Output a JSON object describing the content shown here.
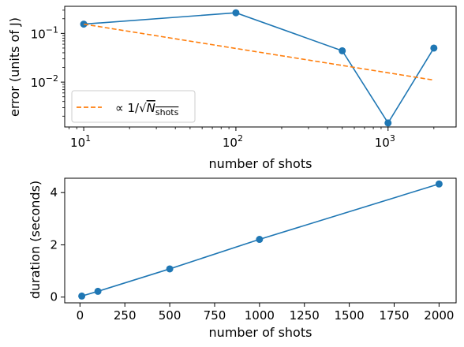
{
  "chart_data": [
    {
      "type": "line",
      "xscale": "log",
      "yscale": "log",
      "xlabel": "number of shots",
      "ylabel": "error (units of J)",
      "xlim": [
        7.5,
        2800
      ],
      "ylim": [
        0.0012,
        0.36
      ],
      "xticks": [
        {
          "value": 10,
          "base": "10",
          "exp": "1"
        },
        {
          "value": 100,
          "base": "10",
          "exp": "2"
        },
        {
          "value": 1000,
          "base": "10",
          "exp": "3"
        }
      ],
      "yticks": [
        {
          "value": 0.1,
          "base": "10",
          "exp": "−1"
        },
        {
          "value": 0.01,
          "base": "10",
          "exp": "−2"
        }
      ],
      "series": [
        {
          "x": [
            10,
            100,
            500,
            1000,
            2000
          ],
          "y": [
            0.155,
            0.265,
            0.044,
            0.00145,
            0.05
          ],
          "color": "#1f77b4",
          "style": "solid",
          "marker": "circle"
        },
        {
          "name_prefix": "∝ 1/√",
          "name_var": "N",
          "name_sub": "shots",
          "x": [
            10,
            2000
          ],
          "y": [
            0.155,
            0.011
          ],
          "color": "#ff7f0e",
          "style": "dashed",
          "marker": "none"
        }
      ],
      "legend": "lower-left",
      "grid": false
    },
    {
      "type": "line",
      "xscale": "linear",
      "yscale": "linear",
      "xlabel": "number of shots",
      "ylabel": "duration (seconds)",
      "xlim": [
        -85,
        2095
      ],
      "ylim": [
        -0.22,
        4.55
      ],
      "xticks": [
        0,
        250,
        500,
        750,
        1000,
        1250,
        1500,
        1750,
        2000
      ],
      "yticks": [
        0,
        2,
        4
      ],
      "series": [
        {
          "x": [
            10,
            100,
            500,
            1000,
            2000
          ],
          "y": [
            0.04,
            0.22,
            1.08,
            2.21,
            4.33
          ],
          "color": "#1f77b4",
          "style": "solid",
          "marker": "circle"
        }
      ],
      "grid": false
    }
  ]
}
